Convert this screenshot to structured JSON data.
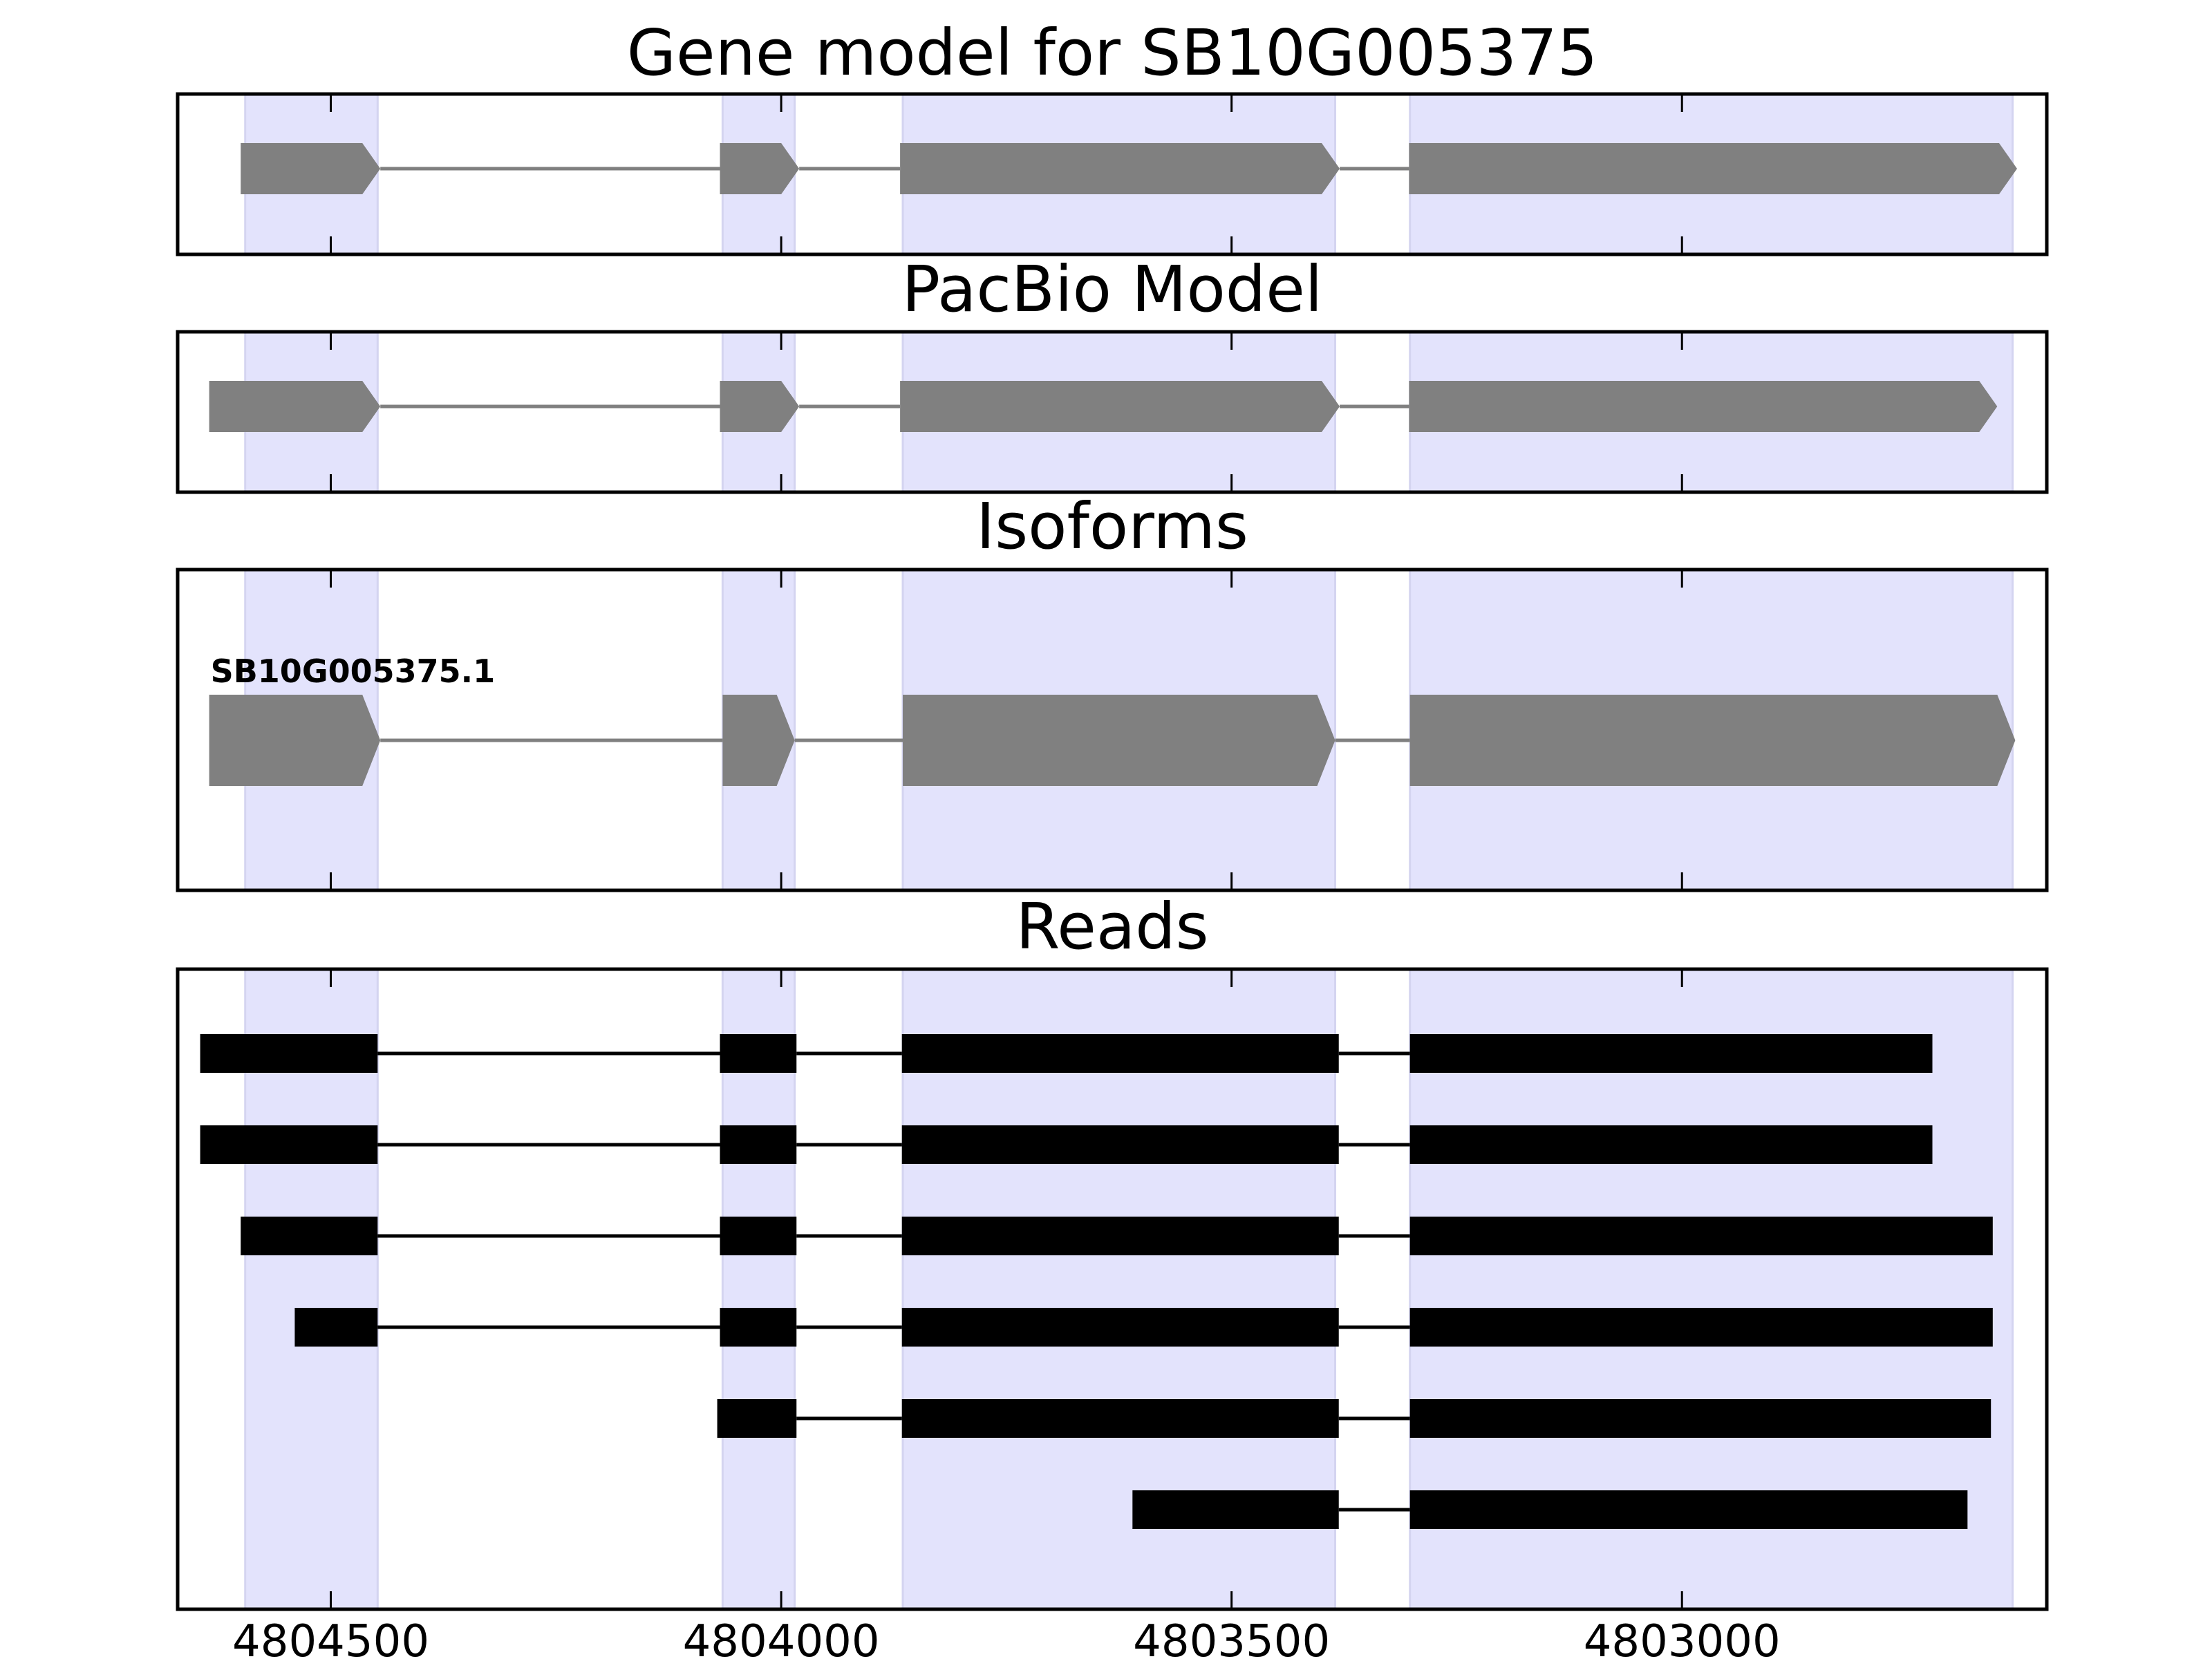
{
  "colors": {
    "exon_shading": "#e3e3fc",
    "gene_feature": "#808080",
    "read": "#000000",
    "frame": "#000000"
  },
  "chart_data": {
    "type": "gene-structure",
    "x_axis": {
      "reversed": true,
      "range": [
        4804670,
        4802595
      ],
      "ticks": [
        4804500,
        4804000,
        4803500,
        4803000
      ],
      "tick_labels": [
        "4804500",
        "4804000",
        "4803500",
        "4803000"
      ]
    },
    "exon_shading": [
      [
        4804595,
        4804448
      ],
      [
        4804065,
        4803985
      ],
      [
        4803865,
        4803385
      ],
      [
        4803302,
        4802633
      ]
    ],
    "panels": [
      {
        "key": "gene_model",
        "title": "Gene model for SB10G005375",
        "strand": "-",
        "exons": [
          [
            4804600,
            4804445
          ],
          [
            4804068,
            4803980
          ],
          [
            4803868,
            4803380
          ],
          [
            4803303,
            4802628
          ]
        ]
      },
      {
        "key": "pacbio_model",
        "title": "PacBio Model",
        "strand": "-",
        "exons": [
          [
            4804635,
            4804445
          ],
          [
            4804068,
            4803980
          ],
          [
            4803868,
            4803380
          ],
          [
            4803303,
            4802650
          ]
        ]
      },
      {
        "key": "isoforms",
        "title": "Isoforms",
        "isoforms": [
          {
            "label": "SB10G005375.1",
            "strand": "-",
            "exons": [
              [
                4804635,
                4804445
              ],
              [
                4804065,
                4803985
              ],
              [
                4803865,
                4803385
              ],
              [
                4803302,
                4802630
              ]
            ]
          }
        ]
      },
      {
        "key": "reads",
        "title": "Reads",
        "reads": [
          [
            [
              4804645,
              4804448
            ],
            [
              4804068,
              4803983
            ],
            [
              4803866,
              4803381
            ],
            [
              4803302,
              4802722
            ]
          ],
          [
            [
              4804645,
              4804448
            ],
            [
              4804068,
              4803983
            ],
            [
              4803866,
              4803381
            ],
            [
              4803302,
              4802722
            ]
          ],
          [
            [
              4804600,
              4804448
            ],
            [
              4804068,
              4803983
            ],
            [
              4803866,
              4803381
            ],
            [
              4803302,
              4802655
            ]
          ],
          [
            [
              4804540,
              4804448
            ],
            [
              4804068,
              4803983
            ],
            [
              4803866,
              4803381
            ],
            [
              4803302,
              4802655
            ]
          ],
          [
            [
              4804071,
              4803983
            ],
            [
              4803866,
              4803381
            ],
            [
              4803302,
              4802657
            ]
          ],
          [
            [
              4803610,
              4803381
            ],
            [
              4803302,
              4802683
            ]
          ]
        ]
      }
    ]
  }
}
